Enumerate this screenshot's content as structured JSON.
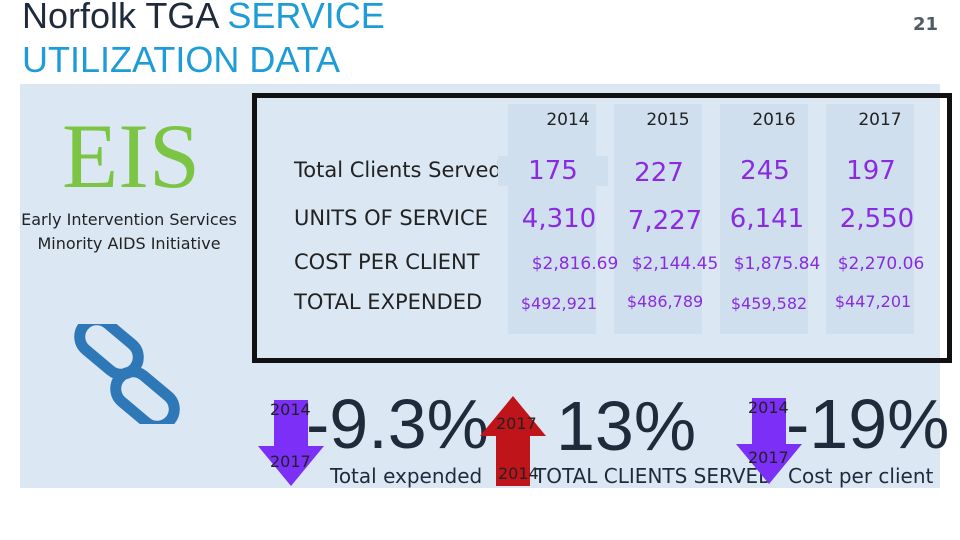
{
  "title": {
    "part1": "Norfolk TGA ",
    "part2": "SERVICE",
    "line2": "UTILIZATION DATA"
  },
  "page_number": "21",
  "program": {
    "acronym": "EIS",
    "line1": "Early Intervention Services",
    "line2": "Minority AIDS Initiative"
  },
  "table": {
    "years": [
      "2014",
      "2015",
      "2016",
      "2017"
    ],
    "rows": [
      {
        "label": "Total Clients Served",
        "values": [
          "175",
          "227",
          "245",
          "197"
        ]
      },
      {
        "label": "UNITS OF SERVICE",
        "values": [
          "4,310",
          "7,227",
          "6,141",
          "2,550"
        ]
      },
      {
        "label": "COST PER CLIENT",
        "values": [
          "$2,816.69",
          "$2,144.45",
          "$1,875.84",
          "$2,270.06"
        ]
      },
      {
        "label": "TOTAL EXPENDED",
        "values": [
          "$492,921",
          "$486,789",
          "$459,582",
          "$447,201"
        ]
      }
    ]
  },
  "changes": [
    {
      "from": "2014",
      "to": "2017",
      "percent": "-9.3%",
      "caption": "Total expended",
      "direction": "down",
      "color": "#7b2ff7"
    },
    {
      "from": "2014",
      "to": "2017",
      "percent": "13%",
      "caption": "TOTAL CLIENTS SERVED",
      "direction": "up",
      "color": "#c0141b"
    },
    {
      "from": "2014",
      "to": "2017",
      "percent": "-19%",
      "caption": "Cost per client",
      "direction": "down",
      "color": "#7b2ff7"
    }
  ],
  "colors": {
    "accent_blue": "#1e9cd7",
    "eis_green": "#7cc444",
    "value_purple": "#8a2be2",
    "panel_bg": "#dbe8f4"
  },
  "icons": {
    "link": "link-icon",
    "down": "arrow-down-icon",
    "up": "arrow-up-icon"
  }
}
